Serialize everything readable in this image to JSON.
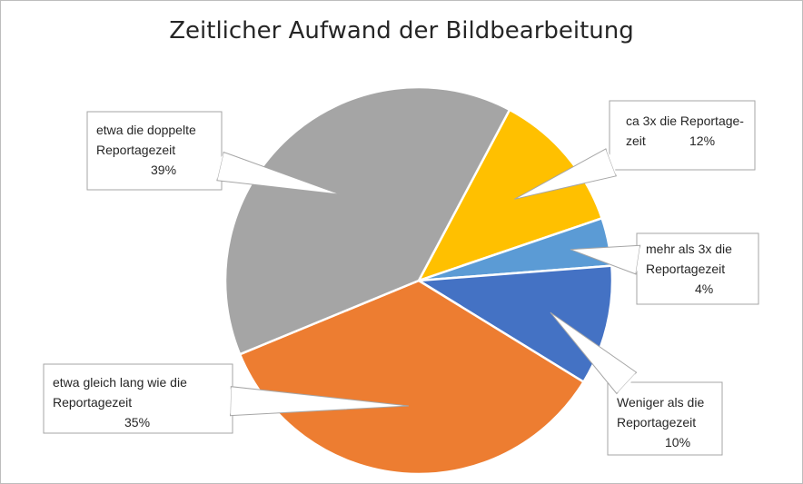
{
  "chart_data": {
    "type": "pie",
    "title": "Zeitlicher Aufwand der Bildbearbeitung",
    "slices": [
      {
        "label_lines": [
          "ca 3x die Reportage-",
          "zeit"
        ],
        "percent_label": "12%",
        "value": 12,
        "color": "#FFC000"
      },
      {
        "label_lines": [
          "mehr als 3x die",
          "Reportagezeit"
        ],
        "percent_label": "4%",
        "value": 4,
        "color": "#5B9BD5"
      },
      {
        "label_lines": [
          "Weniger als die",
          "Reportagezeit"
        ],
        "percent_label": "10%",
        "value": 10,
        "color": "#4472C4"
      },
      {
        "label_lines": [
          "etwa gleich lang wie die",
          "Reportagezeit"
        ],
        "percent_label": "35%",
        "value": 35,
        "color": "#ED7D31"
      },
      {
        "label_lines": [
          "etwa die doppelte",
          "Reportagezeit"
        ],
        "percent_label": "39%",
        "value": 39,
        "color": "#A5A5A5"
      }
    ],
    "legend": "none",
    "data_labels": "callouts"
  }
}
